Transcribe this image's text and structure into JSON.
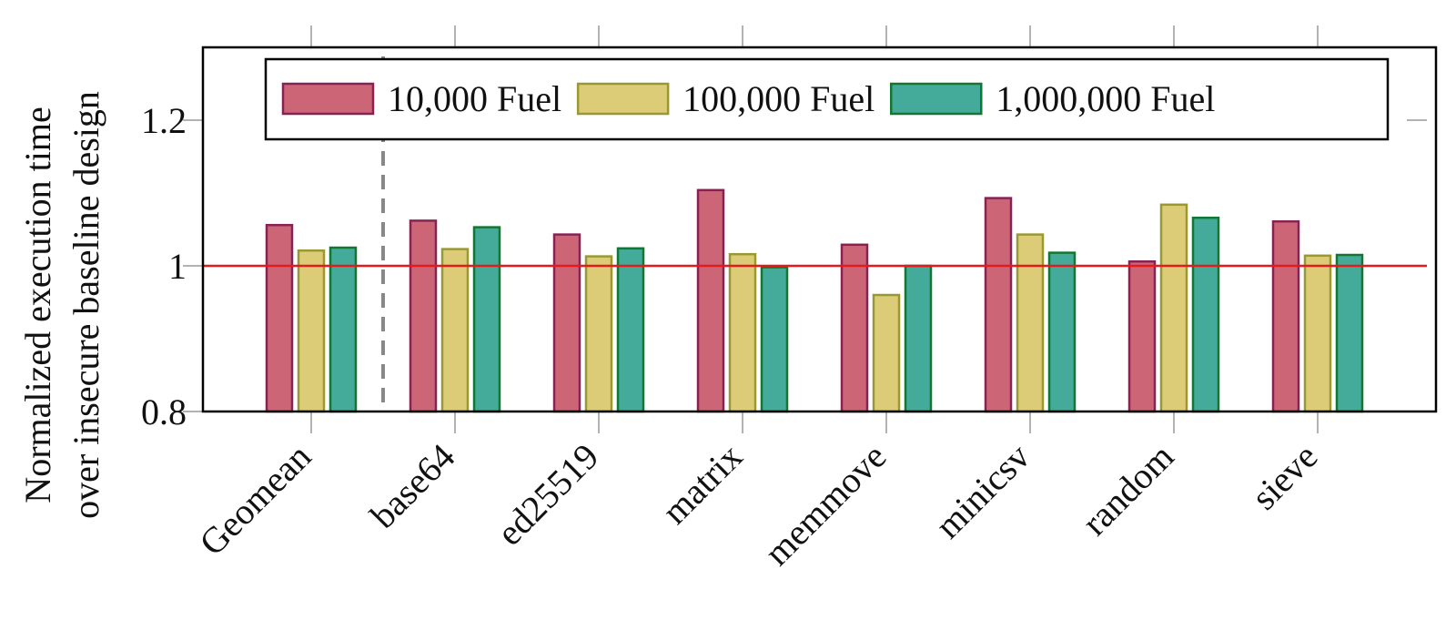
{
  "chart_data": {
    "type": "bar",
    "ylabel": [
      "Normalized execution time",
      "over insecure baseline design"
    ],
    "categories": [
      "Geomean",
      "base64",
      "ed25519",
      "matrix",
      "memmove",
      "minicsv",
      "random",
      "sieve"
    ],
    "series": [
      {
        "name": "10,000 Fuel",
        "color": "#cc6677",
        "edge": "#882255",
        "values": [
          1.056,
          1.062,
          1.043,
          1.104,
          1.029,
          1.093,
          1.006,
          1.061
        ]
      },
      {
        "name": "100,000 Fuel",
        "color": "#ddcc77",
        "edge": "#999933",
        "values": [
          1.021,
          1.023,
          1.013,
          1.016,
          0.96,
          1.043,
          1.084,
          1.014
        ]
      },
      {
        "name": "1,000,000 Fuel",
        "color": "#44aa99",
        "edge": "#117733",
        "values": [
          1.025,
          1.053,
          1.024,
          0.998,
          1.0,
          1.018,
          1.066,
          1.015
        ]
      }
    ],
    "ylim": [
      0.8,
      1.3
    ],
    "yticks": [
      0.8,
      1,
      1.2
    ],
    "reference_line": 1,
    "reference_color": "#e41a1c"
  }
}
